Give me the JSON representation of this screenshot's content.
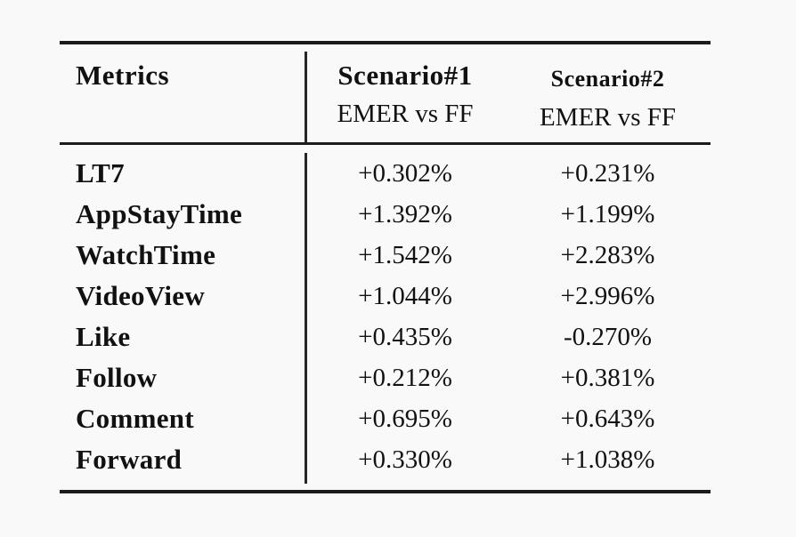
{
  "table": {
    "columns": [
      {
        "label": "Metrics",
        "sublabel": ""
      },
      {
        "label": "Scenario#1",
        "sublabel": "EMER vs FF"
      },
      {
        "label": "Scenario#2",
        "sublabel": "EMER vs FF"
      }
    ],
    "rows": [
      {
        "metric": "LT7",
        "s1": "+0.302%",
        "s2": "+0.231%"
      },
      {
        "metric": "AppStayTime",
        "s1": "+1.392%",
        "s2": "+1.199%"
      },
      {
        "metric": "WatchTime",
        "s1": "+1.542%",
        "s2": "+2.283%"
      },
      {
        "metric": "VideoView",
        "s1": "+1.044%",
        "s2": "+2.996%"
      },
      {
        "metric": "Like",
        "s1": "+0.435%",
        "s2": "-0.270%"
      },
      {
        "metric": "Follow",
        "s1": "+0.212%",
        "s2": "+0.381%"
      },
      {
        "metric": "Comment",
        "s1": "+0.695%",
        "s2": "+0.643%"
      },
      {
        "metric": "Forward",
        "s1": "+0.330%",
        "s2": "+1.038%"
      }
    ]
  },
  "colors": {
    "background": "#f9f9f9",
    "text": "#111111",
    "rule": "#1b1b1b"
  },
  "chart_data": {
    "type": "table",
    "title": "",
    "columns": [
      "Metrics",
      "Scenario#1 EMER vs FF",
      "Scenario#2 EMER vs FF"
    ],
    "rows": [
      [
        "LT7",
        "+0.302%",
        "+0.231%"
      ],
      [
        "AppStayTime",
        "+1.392%",
        "+1.199%"
      ],
      [
        "WatchTime",
        "+1.542%",
        "+2.283%"
      ],
      [
        "VideoView",
        "+1.044%",
        "+2.996%"
      ],
      [
        "Like",
        "+0.435%",
        "-0.270%"
      ],
      [
        "Follow",
        "+0.212%",
        "+0.381%"
      ],
      [
        "Comment",
        "+0.695%",
        "+0.643%"
      ],
      [
        "Forward",
        "+0.330%",
        "+1.038%"
      ]
    ]
  }
}
